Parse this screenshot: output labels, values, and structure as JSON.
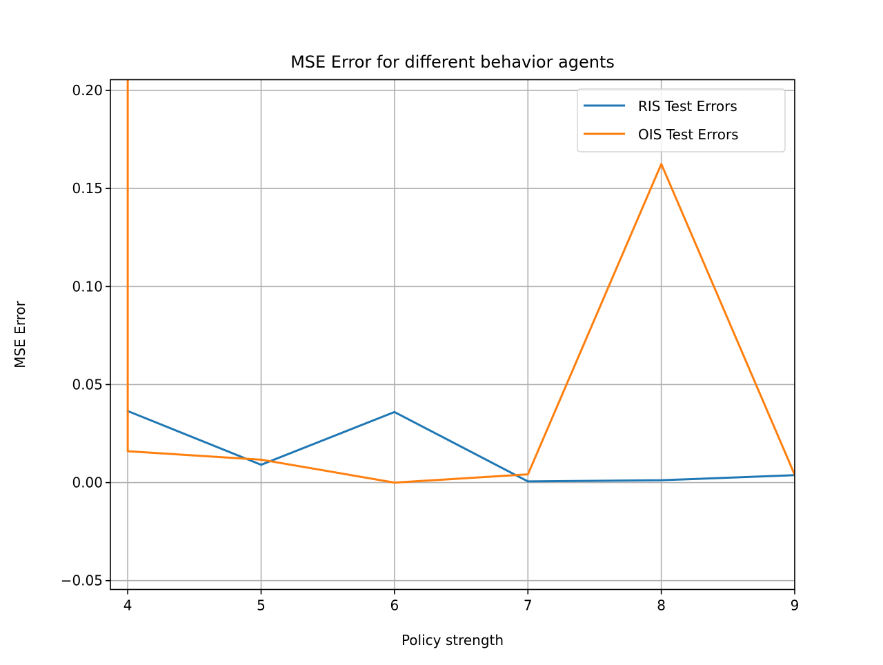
{
  "chart_data": {
    "type": "line",
    "title": "MSE Error for different behavior agents",
    "xlabel": "Policy strength",
    "ylabel": "MSE Error",
    "xlim": [
      3.87,
      9.0
    ],
    "ylim": [
      -0.0545,
      0.2055
    ],
    "x_ticks": [
      4,
      5,
      6,
      7,
      8,
      9
    ],
    "x_tick_labels": [
      "4",
      "5",
      "6",
      "7",
      "8",
      "9"
    ],
    "y_ticks": [
      -0.05,
      0.0,
      0.05,
      0.1,
      0.15,
      0.2
    ],
    "y_tick_labels": [
      "−0.05",
      "0.00",
      "0.05",
      "0.10",
      "0.15",
      "0.20"
    ],
    "grid": true,
    "legend_position": "top-right",
    "series": [
      {
        "name": "RIS Test Errors",
        "color": "#1f77b4",
        "points": [
          [
            4,
            0.0365
          ],
          [
            5,
            0.0091
          ],
          [
            6,
            0.036
          ],
          [
            7,
            0.0006
          ],
          [
            8,
            0.0012
          ],
          [
            9,
            0.0038
          ]
        ]
      },
      {
        "name": "OIS Test Errors",
        "color": "#ff7f0e",
        "points": [
          [
            4,
            0.45
          ],
          [
            4,
            0.016
          ],
          [
            5,
            0.0117
          ],
          [
            6,
            0.0
          ],
          [
            7,
            0.0042
          ],
          [
            8,
            0.1625
          ],
          [
            9,
            0.004
          ]
        ]
      }
    ]
  }
}
